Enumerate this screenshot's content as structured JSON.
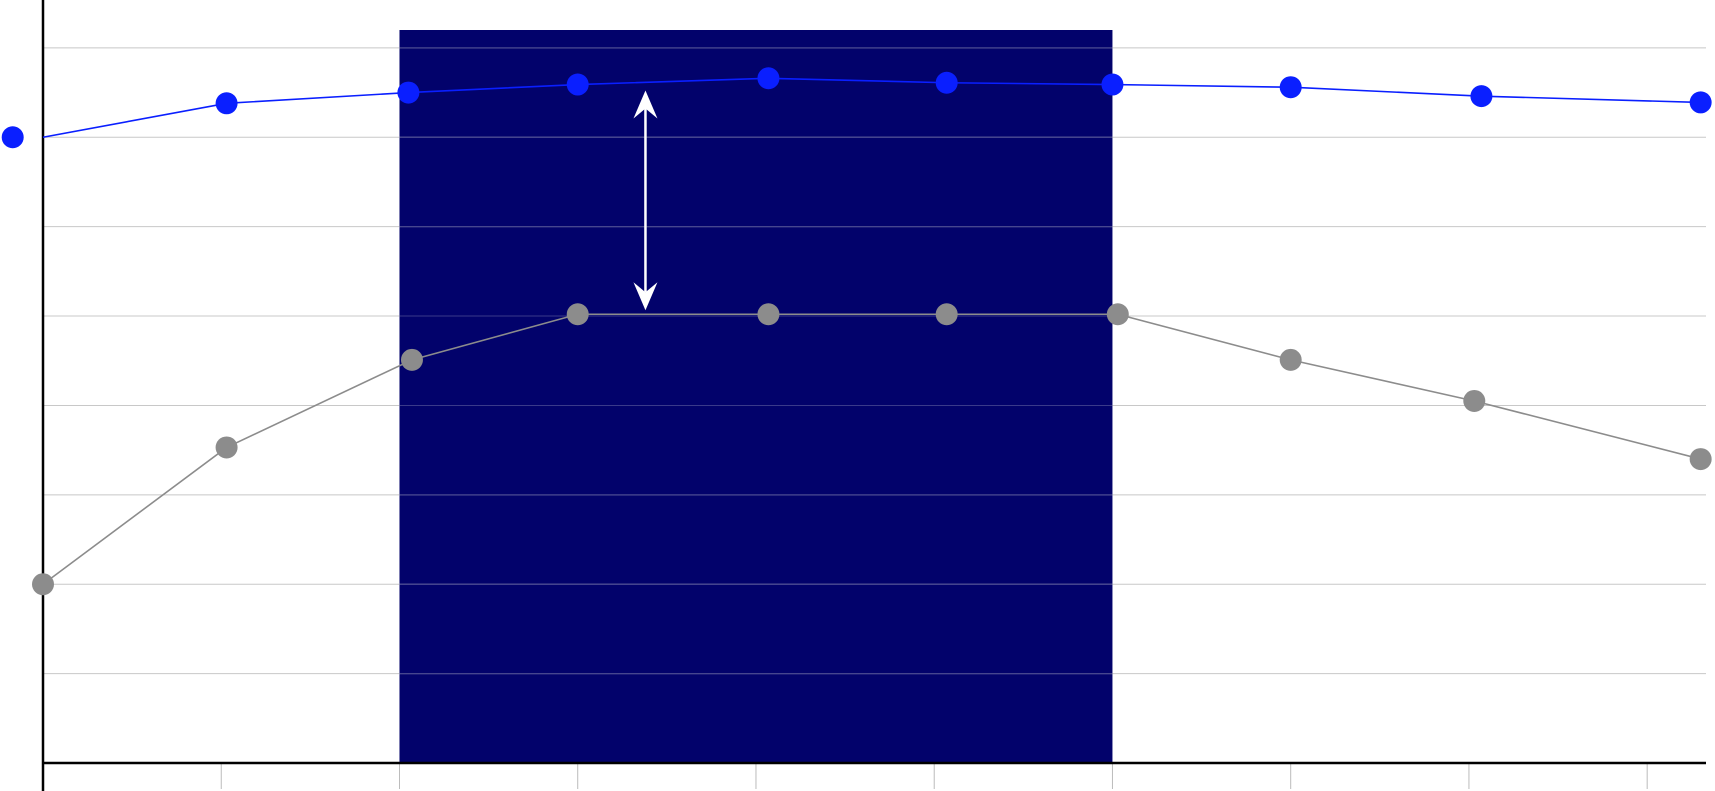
{
  "colors": {
    "background": "#ffffff",
    "highlight_band": "#02026b",
    "gridline": "#c8c8c8",
    "gridline_on_band": "#3a3a8a",
    "axis": "#000000",
    "tick": "#bbbbbb",
    "arrow": "#ffffff"
  },
  "chart_data": {
    "type": "line",
    "title": "",
    "xlabel": "",
    "ylabel": "",
    "grid": true,
    "legend": "none",
    "xlim": [
      0,
      9.33
    ],
    "ylim": [
      0,
      8.2
    ],
    "x_ticks": [
      1,
      2,
      3,
      4,
      5,
      6,
      7,
      8,
      9
    ],
    "y_gridlines": [
      1,
      2,
      3,
      4,
      5,
      6,
      7,
      8
    ],
    "highlight_band": {
      "x_start": 2,
      "x_end": 6
    },
    "series": [
      {
        "color": "#0a1fff",
        "points": [
          {
            "x": -0.17,
            "y": 7.0
          },
          {
            "x": 1.03,
            "y": 7.38
          },
          {
            "x": 2.05,
            "y": 7.5
          },
          {
            "x": 3.0,
            "y": 7.59
          },
          {
            "x": 4.07,
            "y": 7.66
          },
          {
            "x": 5.07,
            "y": 7.61
          },
          {
            "x": 6.0,
            "y": 7.59
          },
          {
            "x": 7.0,
            "y": 7.56
          },
          {
            "x": 8.07,
            "y": 7.46
          },
          {
            "x": 9.3,
            "y": 7.39
          }
        ]
      },
      {
        "color": "#8c8c8c",
        "points": [
          {
            "x": 0.0,
            "y": 2.0
          },
          {
            "x": 1.03,
            "y": 3.53
          },
          {
            "x": 2.07,
            "y": 4.51
          },
          {
            "x": 3.0,
            "y": 5.02
          },
          {
            "x": 4.07,
            "y": 5.02
          },
          {
            "x": 5.07,
            "y": 5.02
          },
          {
            "x": 6.03,
            "y": 5.02
          },
          {
            "x": 7.0,
            "y": 4.51
          },
          {
            "x": 8.03,
            "y": 4.05
          },
          {
            "x": 9.3,
            "y": 3.4
          }
        ]
      }
    ],
    "annotations": [
      {
        "type": "double-arrow",
        "x": 3.38,
        "y_from": 7.59,
        "y_to": 5.02
      }
    ]
  }
}
